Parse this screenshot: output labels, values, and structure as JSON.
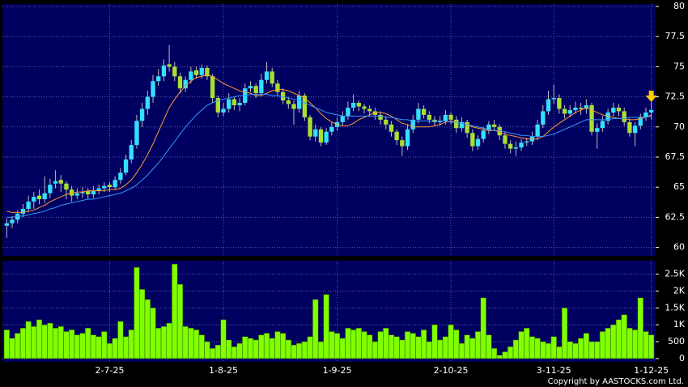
{
  "chart_data": [
    {
      "type": "candlestick",
      "up_color": "#33e0ff",
      "down_color": "#a8e030",
      "grid": true,
      "ylim": [
        59.3,
        80.2
      ],
      "yticks": [
        60,
        62.5,
        65,
        67.5,
        70,
        72.5,
        75,
        77.5,
        80
      ],
      "open": [
        61.8,
        62.0,
        62.3,
        62.8,
        63.2,
        63.8,
        64.3,
        64.0,
        64.5,
        65.3,
        65.6,
        65.3,
        64.8,
        64.3,
        64.5,
        64.7,
        64.4,
        64.7,
        64.9,
        65.2,
        65.0,
        65.6,
        66.2,
        67.3,
        68.5,
        70.5,
        71.5,
        72.5,
        73.8,
        74.2,
        75.2,
        75.0,
        74.2,
        73.2,
        73.9,
        74.7,
        74.3,
        74.9,
        74.2,
        72.4,
        71.2,
        71.5,
        72.3,
        71.8,
        72.0,
        73.2,
        73.4,
        72.8,
        73.9,
        74.6,
        73.6,
        72.9,
        72.2,
        71.9,
        71.5,
        72.6,
        70.8,
        69.2,
        69.8,
        68.7,
        69.6,
        70.0,
        70.4,
        70.9,
        71.6,
        72.0,
        71.7,
        71.5,
        71.3,
        71.0,
        70.6,
        70.2,
        69.6,
        68.9,
        68.4,
        69.8,
        70.6,
        71.5,
        71.0,
        70.6,
        70.4,
        70.5,
        71.0,
        70.6,
        69.9,
        70.4,
        69.5,
        68.4,
        69.0,
        69.7,
        70.2,
        70.0,
        69.3,
        68.6,
        68.2,
        68.3,
        68.7,
        68.8,
        69.2,
        70.2,
        71.3,
        72.3,
        72.4,
        71.5,
        71.1,
        71.4,
        71.6,
        71.5,
        71.8,
        69.6,
        69.9,
        70.5,
        71.2,
        71.6,
        71.3,
        70.4,
        69.5,
        70.1,
        70.8,
        71.2
      ],
      "high": [
        62.4,
        62.6,
        63.1,
        63.6,
        64.3,
        64.6,
        64.8,
        65.9,
        65.7,
        66.4,
        66.0,
        65.5,
        65.1,
        64.9,
        65.0,
        64.9,
        65.1,
        65.2,
        65.4,
        65.4,
        65.9,
        66.6,
        67.7,
        68.9,
        71.0,
        72.0,
        73.0,
        74.3,
        74.8,
        75.6,
        76.8,
        75.4,
        74.5,
        74.2,
        75.0,
        75.0,
        75.2,
        75.1,
        74.4,
        72.6,
        72.0,
        72.8,
        72.5,
        72.4,
        73.6,
        73.8,
        73.6,
        74.4,
        75.4,
        74.9,
        73.9,
        73.2,
        72.5,
        72.2,
        73.0,
        72.8,
        71.0,
        70.2,
        70.0,
        69.9,
        70.4,
        70.8,
        71.3,
        72.1,
        72.7,
        72.2,
        71.9,
        71.8,
        71.6,
        71.3,
        70.9,
        70.5,
        69.8,
        69.2,
        70.2,
        71.0,
        72.0,
        71.8,
        71.3,
        70.9,
        70.9,
        71.4,
        71.2,
        70.9,
        70.8,
        70.6,
        69.8,
        69.3,
        70.0,
        70.5,
        70.6,
        70.2,
        69.6,
        68.9,
        68.8,
        69.0,
        69.1,
        69.6,
        70.6,
        71.8,
        73.0,
        73.5,
        72.7,
        71.8,
        71.8,
        72.1,
        72.0,
        72.3,
        72.0,
        70.3,
        70.9,
        71.5,
        72.0,
        71.9,
        71.6,
        70.7,
        70.4,
        71.1,
        71.6,
        72.2
      ],
      "low": [
        60.8,
        61.6,
        62.0,
        62.5,
        62.9,
        63.2,
        63.6,
        63.7,
        64.1,
        64.9,
        64.6,
        64.0,
        63.8,
        64.0,
        64.1,
        64.0,
        64.1,
        64.4,
        64.6,
        64.6,
        64.8,
        65.3,
        66.0,
        67.0,
        68.2,
        70.0,
        71.0,
        72.0,
        73.4,
        73.8,
        74.6,
        73.8,
        72.8,
        72.9,
        73.6,
        74.0,
        74.0,
        73.9,
        72.0,
        70.8,
        70.9,
        71.2,
        71.4,
        71.3,
        71.8,
        72.9,
        72.4,
        72.6,
        73.6,
        73.3,
        72.6,
        71.9,
        71.5,
        70.2,
        71.2,
        70.5,
        68.9,
        68.8,
        68.4,
        68.5,
        69.3,
        69.7,
        70.1,
        70.6,
        71.3,
        71.3,
        71.1,
        70.9,
        70.6,
        70.2,
        69.8,
        69.2,
        68.5,
        67.6,
        68.1,
        69.5,
        70.3,
        70.7,
        70.3,
        70.1,
        70.1,
        70.2,
        70.2,
        69.5,
        69.6,
        69.1,
        68.0,
        68.1,
        68.7,
        69.4,
        69.7,
        68.9,
        68.2,
        67.8,
        67.6,
        68.0,
        68.4,
        68.5,
        68.9,
        69.9,
        71.0,
        71.9,
        71.1,
        70.7,
        70.8,
        71.1,
        71.0,
        71.1,
        69.3,
        68.2,
        69.6,
        70.2,
        70.9,
        70.9,
        70.1,
        69.2,
        68.4,
        69.8,
        70.5,
        70.6
      ],
      "close": [
        62.0,
        62.3,
        62.8,
        63.2,
        63.8,
        64.2,
        64.0,
        64.5,
        65.2,
        65.5,
        65.3,
        64.8,
        64.3,
        64.5,
        64.6,
        64.4,
        64.7,
        64.9,
        65.1,
        65.0,
        65.6,
        66.2,
        67.3,
        68.5,
        70.5,
        71.5,
        72.5,
        73.8,
        74.2,
        75.1,
        75.0,
        74.2,
        73.2,
        73.9,
        74.6,
        74.3,
        74.9,
        74.2,
        72.4,
        71.2,
        71.5,
        72.3,
        71.8,
        72.0,
        73.2,
        73.4,
        72.8,
        73.9,
        74.6,
        73.6,
        72.9,
        72.2,
        71.9,
        71.5,
        72.6,
        70.8,
        69.2,
        69.8,
        68.7,
        69.6,
        70.0,
        70.4,
        70.9,
        71.6,
        72.0,
        71.7,
        71.5,
        71.3,
        71.0,
        70.6,
        70.2,
        69.6,
        68.9,
        68.4,
        69.8,
        70.6,
        71.5,
        71.0,
        70.6,
        70.4,
        70.5,
        71.0,
        70.6,
        69.9,
        70.4,
        69.5,
        68.4,
        69.0,
        69.7,
        70.2,
        70.0,
        69.3,
        68.6,
        68.2,
        68.3,
        68.7,
        68.8,
        69.2,
        70.2,
        71.3,
        72.3,
        72.4,
        71.5,
        71.1,
        71.4,
        71.6,
        71.5,
        71.8,
        69.6,
        69.9,
        70.5,
        71.2,
        71.6,
        71.3,
        70.4,
        69.5,
        70.1,
        70.8,
        71.2,
        71.4
      ],
      "series": [
        {
          "color": "#ff9933",
          "values": [
            63.0,
            62.9,
            62.9,
            62.9,
            63.0,
            63.1,
            63.3,
            63.5,
            63.8,
            64.0,
            64.2,
            64.4,
            64.5,
            64.6,
            64.6,
            64.7,
            64.7,
            64.7,
            64.7,
            64.8,
            64.8,
            64.9,
            65.2,
            65.6,
            66.2,
            66.9,
            67.7,
            68.6,
            69.6,
            70.6,
            71.6,
            72.3,
            72.9,
            73.4,
            73.8,
            74.1,
            74.2,
            74.3,
            74.2,
            73.9,
            73.6,
            73.4,
            73.2,
            73.0,
            72.9,
            72.8,
            72.6,
            72.6,
            72.8,
            73.0,
            73.1,
            73.1,
            73.0,
            72.8,
            72.6,
            72.4,
            72.0,
            71.6,
            71.1,
            70.7,
            70.4,
            70.2,
            70.1,
            70.1,
            70.3,
            70.6,
            70.8,
            71.0,
            71.2,
            71.2,
            71.1,
            70.9,
            70.6,
            70.3,
            70.2,
            70.0,
            70.0,
            70.0,
            70.0,
            70.1,
            70.2,
            70.4,
            70.5,
            70.4,
            70.3,
            70.2,
            70.0,
            69.9,
            69.8,
            69.7,
            69.7,
            69.6,
            69.4,
            69.3,
            69.2,
            69.1,
            69.0,
            69.0,
            69.0,
            69.2,
            69.6,
            70.0,
            70.3,
            70.6,
            70.9,
            71.2,
            71.4,
            71.6,
            71.4,
            71.2,
            71.0,
            70.9,
            70.8,
            70.7,
            70.7,
            70.6,
            70.6,
            70.7,
            70.8,
            71.0
          ]
        },
        {
          "color": "#3399ff",
          "values": [
            62.5,
            62.5,
            62.6,
            62.6,
            62.7,
            62.8,
            62.9,
            63.0,
            63.2,
            63.3,
            63.5,
            63.6,
            63.7,
            63.8,
            63.9,
            64.0,
            64.0,
            64.1,
            64.2,
            64.3,
            64.4,
            64.5,
            64.7,
            64.9,
            65.2,
            65.6,
            66.0,
            66.5,
            67.0,
            67.6,
            68.2,
            68.8,
            69.4,
            70.0,
            70.5,
            71.0,
            71.4,
            71.8,
            72.0,
            72.2,
            72.3,
            72.4,
            72.5,
            72.6,
            72.6,
            72.7,
            72.7,
            72.7,
            72.7,
            72.6,
            72.6,
            72.5,
            72.4,
            72.3,
            72.2,
            72.0,
            71.8,
            71.6,
            71.4,
            71.2,
            71.1,
            71.0,
            70.9,
            70.9,
            70.9,
            70.9,
            70.9,
            70.9,
            70.9,
            70.9,
            70.8,
            70.8,
            70.7,
            70.6,
            70.6,
            70.5,
            70.5,
            70.5,
            70.5,
            70.5,
            70.5,
            70.5,
            70.4,
            70.4,
            70.3,
            70.2,
            70.1,
            70.0,
            69.9,
            69.8,
            69.7,
            69.7,
            69.6,
            69.5,
            69.4,
            69.3,
            69.3,
            69.2,
            69.2,
            69.2,
            69.3,
            69.4,
            69.6,
            69.8,
            70.0,
            70.2,
            70.4,
            70.6,
            70.6,
            70.6,
            70.6,
            70.6,
            70.7,
            70.7,
            70.7,
            70.8,
            70.8,
            70.8,
            70.8,
            70.9
          ]
        }
      ]
    },
    {
      "type": "bar",
      "color": "#80ff00",
      "grid": true,
      "ylim": [
        -100,
        2900
      ],
      "yticks": [
        0,
        {
          "value": 500,
          "label": "500"
        },
        {
          "value": 1000,
          "label": "1K"
        },
        {
          "value": 1500,
          "label": "1.5K"
        },
        {
          "value": 2000,
          "label": "2K"
        },
        {
          "value": 2500,
          "label": "2.5K"
        }
      ],
      "categories": [
        null,
        null,
        null,
        null,
        null,
        null,
        null,
        null,
        null,
        null,
        null,
        null,
        null,
        null,
        null,
        null,
        null,
        null,
        null,
        "2-7-25",
        null,
        null,
        null,
        null,
        null,
        null,
        null,
        null,
        null,
        null,
        null,
        null,
        null,
        null,
        null,
        null,
        null,
        null,
        null,
        null,
        "1-8-25",
        null,
        null,
        null,
        null,
        null,
        null,
        null,
        null,
        null,
        null,
        null,
        null,
        null,
        null,
        null,
        null,
        null,
        null,
        null,
        null,
        "1-9-25",
        null,
        null,
        null,
        null,
        null,
        null,
        null,
        null,
        null,
        null,
        null,
        null,
        null,
        null,
        null,
        null,
        null,
        null,
        null,
        null,
        "2-10-25",
        null,
        null,
        null,
        null,
        null,
        null,
        null,
        null,
        null,
        null,
        null,
        null,
        null,
        null,
        null,
        null,
        null,
        null,
        "3-11-25",
        null,
        null,
        null,
        null,
        null,
        null,
        null,
        null,
        null,
        null,
        null,
        null,
        null,
        null,
        null,
        null,
        null,
        "1-12-25"
      ],
      "values": [
        850,
        600,
        750,
        900,
        1100,
        950,
        1150,
        1000,
        1050,
        900,
        950,
        800,
        850,
        700,
        750,
        900,
        700,
        650,
        800,
        450,
        600,
        1100,
        650,
        850,
        2700,
        2050,
        1750,
        1500,
        900,
        950,
        1050,
        2800,
        2200,
        950,
        900,
        850,
        700,
        500,
        300,
        400,
        1150,
        550,
        350,
        450,
        650,
        600,
        550,
        700,
        750,
        600,
        800,
        750,
        550,
        400,
        450,
        500,
        650,
        1750,
        500,
        1900,
        800,
        750,
        600,
        900,
        850,
        900,
        800,
        700,
        500,
        800,
        900,
        700,
        650,
        550,
        800,
        750,
        650,
        850,
        500,
        1000,
        550,
        650,
        1000,
        850,
        450,
        700,
        600,
        800,
        1800,
        700,
        300,
        100,
        200,
        350,
        550,
        800,
        900,
        650,
        600,
        500,
        450,
        650,
        350,
        1500,
        500,
        450,
        600,
        750,
        500,
        500,
        800,
        900,
        1000,
        1150,
        1300,
        900,
        850,
        1800,
        800,
        700
      ],
      "footer": "Copyright by AASTOCKS.com Ltd."
    }
  ]
}
